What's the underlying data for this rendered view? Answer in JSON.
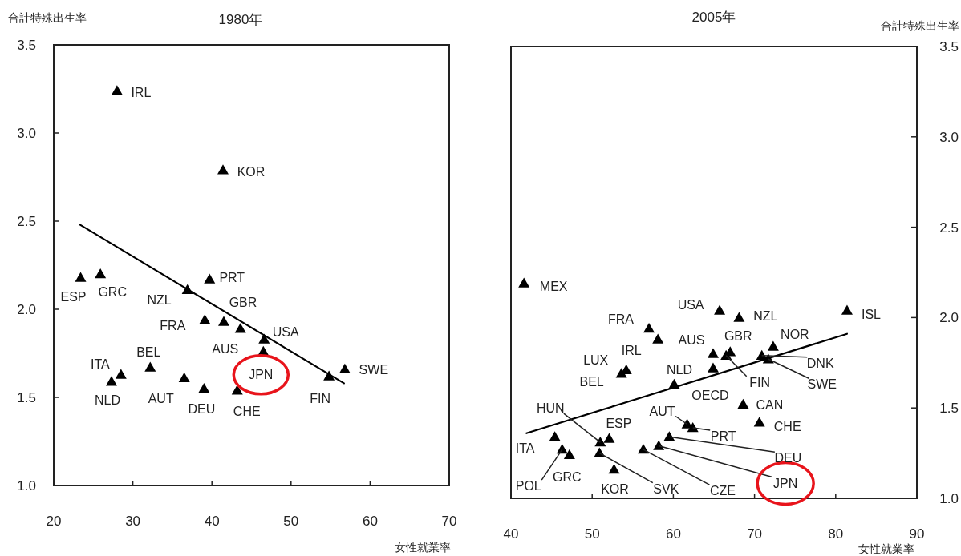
{
  "chart_data": [
    {
      "type": "scatter",
      "title": "1980年",
      "ylabel": "合計特殊出生率",
      "xlabel": "女性就業率",
      "xlim": [
        20,
        70
      ],
      "xticks": [
        20,
        30,
        40,
        50,
        60,
        70
      ],
      "ylim": [
        1,
        3.5
      ],
      "yticks": [
        {
          "value": 1,
          "label": "1.0"
        },
        {
          "value": 1.5,
          "label": "1.5"
        },
        {
          "value": 2,
          "label": "2.0"
        },
        {
          "value": 2.5,
          "label": "2.5"
        },
        {
          "value": 3,
          "label": "3.0"
        },
        {
          "value": 3.5,
          "label": "3.5"
        }
      ],
      "series": [
        {
          "marker": "triangle",
          "color": "#000000",
          "x": [
            28.0,
            41.4,
            39.7,
            23.4,
            25.9,
            36.9,
            39.1,
            41.5,
            43.6,
            46.6,
            46.5,
            32.2,
            28.5,
            27.3,
            36.5,
            39.0,
            43.2,
            54.8,
            56.8
          ],
          "values": [
            3.24,
            2.79,
            2.17,
            2.18,
            2.2,
            2.11,
            1.94,
            1.93,
            1.89,
            1.83,
            1.76,
            1.67,
            1.63,
            1.59,
            1.61,
            1.55,
            1.54,
            1.62,
            1.66
          ]
        },
        {
          "type": "line",
          "color": "#000000",
          "x": [
            23.3,
            56.7
          ],
          "values": [
            2.48,
            1.58
          ]
        }
      ],
      "annotations": [
        {
          "text": "IRL",
          "x": 28.0,
          "y": 3.24
        },
        {
          "text": "KOR",
          "x": 41.4,
          "y": 2.79
        },
        {
          "text": "PRT",
          "x": 39.7,
          "y": 2.17
        },
        {
          "text": "ESP",
          "x": 23.4,
          "y": 2.18
        },
        {
          "text": "GRC",
          "x": 25.9,
          "y": 2.2
        },
        {
          "text": "NZL",
          "x": 36.9,
          "y": 2.11
        },
        {
          "text": "FRA",
          "x": 39.1,
          "y": 1.94
        },
        {
          "text": "GBR",
          "x": 41.5,
          "y": 1.93
        },
        {
          "text": "AUS",
          "x": 43.6,
          "y": 1.89
        },
        {
          "text": "USA",
          "x": 46.6,
          "y": 1.83
        },
        {
          "text": "JPN",
          "x": 46.5,
          "y": 1.76
        },
        {
          "text": "BEL",
          "x": 32.2,
          "y": 1.67
        },
        {
          "text": "ITA",
          "x": 28.5,
          "y": 1.63
        },
        {
          "text": "NLD",
          "x": 27.3,
          "y": 1.59
        },
        {
          "text": "AUT",
          "x": 36.5,
          "y": 1.61
        },
        {
          "text": "DEU",
          "x": 39.0,
          "y": 1.55
        },
        {
          "text": "CHE",
          "x": 43.2,
          "y": 1.54
        },
        {
          "text": "FIN",
          "x": 54.8,
          "y": 1.62
        },
        {
          "text": "SWE",
          "x": 56.8,
          "y": 1.66
        }
      ]
    },
    {
      "type": "scatter",
      "title": "2005年",
      "ylabel": "合計特殊出生率",
      "xlabel": "女性就業率",
      "xlim": [
        40,
        90
      ],
      "xticks": [
        40,
        50,
        60,
        70,
        80,
        90
      ],
      "ylim": [
        1,
        3.5
      ],
      "yticks": [
        {
          "value": 1,
          "label": "1.0"
        },
        {
          "value": 1.5,
          "label": "1.5"
        },
        {
          "value": 2,
          "label": "2.0"
        },
        {
          "value": 2.5,
          "label": "2.5"
        },
        {
          "value": 3,
          "label": "3.0"
        },
        {
          "value": 3.5,
          "label": "3.5"
        }
      ],
      "series": [
        {
          "marker": "triangle",
          "color": "#000000",
          "x": [
            41.6,
            65.7,
            68.1,
            81.4,
            57.0,
            58.1,
            64.9,
            67.0,
            66.5,
            64.9,
            72.3,
            70.9,
            71.7,
            54.2,
            53.6,
            60.1,
            68.6,
            70.6,
            61.7,
            62.4,
            51.0,
            52.1,
            45.4,
            46.3,
            47.2,
            52.7,
            50.9,
            56.3,
            58.2,
            59.5
          ],
          "values": [
            2.19,
            2.04,
            2.0,
            2.04,
            1.94,
            1.88,
            1.8,
            1.81,
            1.79,
            1.72,
            1.84,
            1.79,
            1.77,
            1.71,
            1.69,
            1.63,
            1.52,
            1.42,
            1.41,
            1.39,
            1.31,
            1.33,
            1.34,
            1.27,
            1.24,
            1.16,
            1.25,
            1.27,
            1.29,
            1.34
          ]
        },
        {
          "type": "line",
          "color": "#000000",
          "x": [
            41.9,
            81.4
          ],
          "values": [
            1.36,
            1.91
          ]
        }
      ],
      "annotations": [
        {
          "text": "MEX",
          "x": 41.6,
          "y": 2.19
        },
        {
          "text": "USA",
          "x": 65.7,
          "y": 2.04
        },
        {
          "text": "NZL",
          "x": 68.1,
          "y": 2.0
        },
        {
          "text": "ISL",
          "x": 81.4,
          "y": 2.04
        },
        {
          "text": "FRA",
          "x": 57.0,
          "y": 1.94
        },
        {
          "text": "IRL",
          "x": 58.1,
          "y": 1.88
        },
        {
          "text": "AUS",
          "x": 64.9,
          "y": 1.8
        },
        {
          "text": "GBR",
          "x": 67.0,
          "y": 1.81
        },
        {
          "text": "FIN",
          "x": 66.5,
          "y": 1.79
        },
        {
          "text": "NLD",
          "x": 64.9,
          "y": 1.72
        },
        {
          "text": "NOR",
          "x": 72.3,
          "y": 1.84
        },
        {
          "text": "DNK",
          "x": 70.9,
          "y": 1.79
        },
        {
          "text": "SWE",
          "x": 71.7,
          "y": 1.77
        },
        {
          "text": "LUX",
          "x": 54.2,
          "y": 1.71
        },
        {
          "text": "BEL",
          "x": 53.6,
          "y": 1.69
        },
        {
          "text": "OECD",
          "x": 60.1,
          "y": 1.63
        },
        {
          "text": "CAN",
          "x": 68.6,
          "y": 1.52
        },
        {
          "text": "CHE",
          "x": 70.6,
          "y": 1.42
        },
        {
          "text": "AUT",
          "x": 61.7,
          "y": 1.41
        },
        {
          "text": "PRT",
          "x": 62.4,
          "y": 1.39
        },
        {
          "text": "HUN",
          "x": 51.0,
          "y": 1.31
        },
        {
          "text": "ESP",
          "x": 52.1,
          "y": 1.33
        },
        {
          "text": "ITA",
          "x": 45.4,
          "y": 1.34
        },
        {
          "text": "POL",
          "x": 46.3,
          "y": 1.27
        },
        {
          "text": "GRC",
          "x": 47.2,
          "y": 1.24
        },
        {
          "text": "KOR",
          "x": 52.7,
          "y": 1.16
        },
        {
          "text": "SVK",
          "x": 50.9,
          "y": 1.25
        },
        {
          "text": "CZE",
          "x": 56.3,
          "y": 1.27
        },
        {
          "text": "JPN",
          "x": 58.2,
          "y": 1.29
        },
        {
          "text": "DEU",
          "x": 59.5,
          "y": 1.34
        }
      ]
    }
  ]
}
